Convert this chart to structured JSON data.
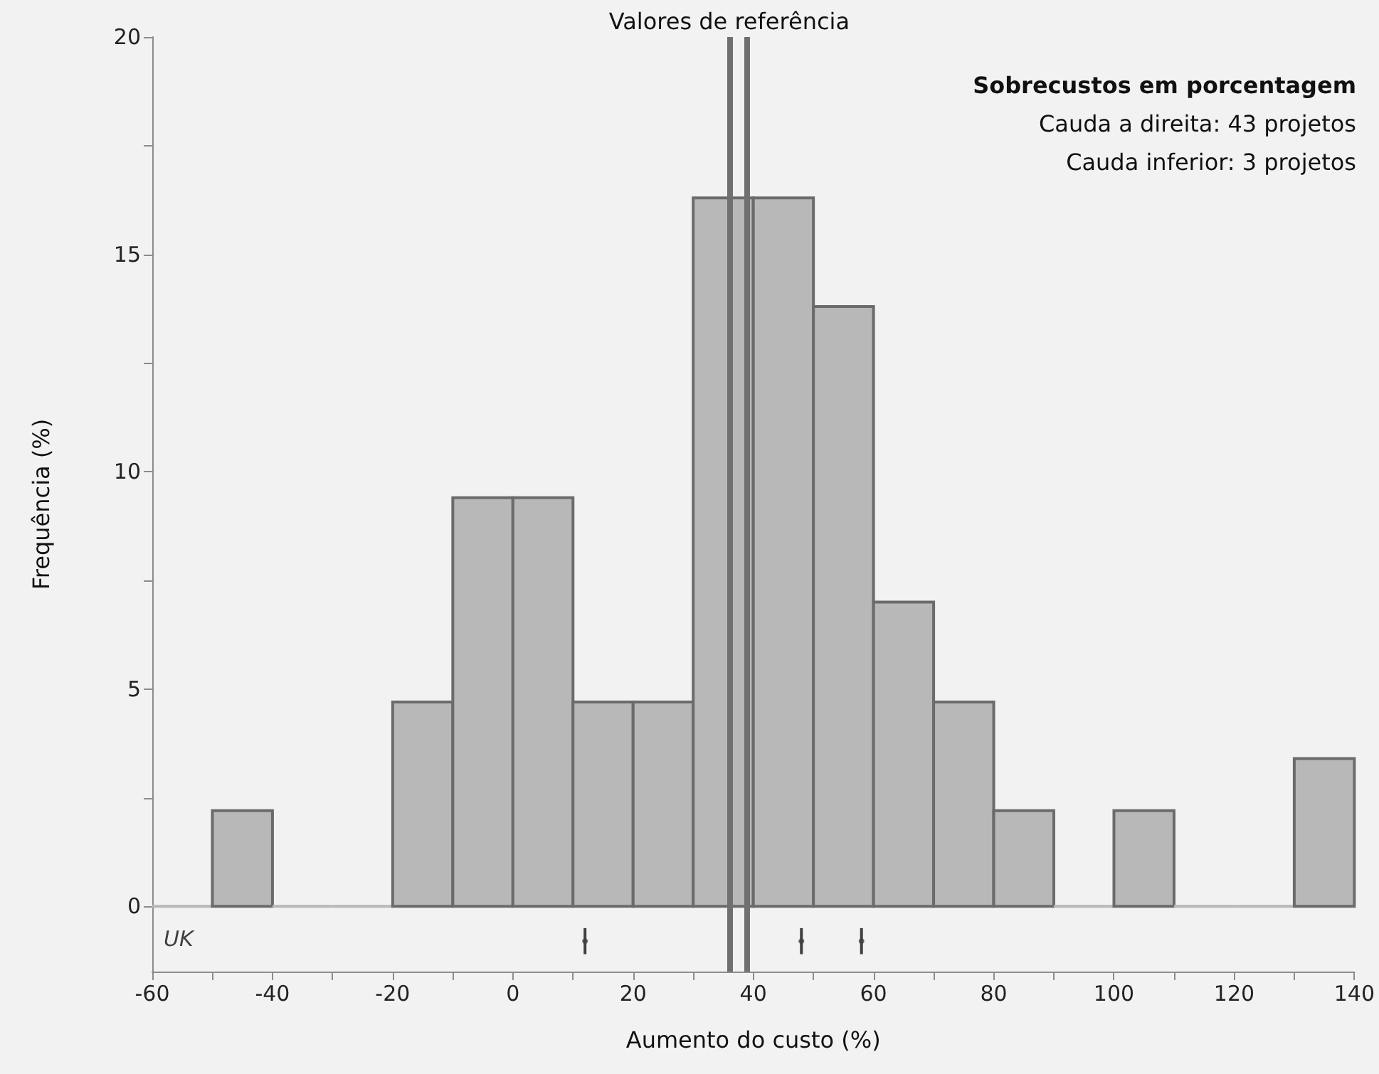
{
  "chart_data": {
    "type": "histogram",
    "ylabel": "Frequência (%)",
    "xlabel": "Aumento do custo (%)",
    "bins": [
      -60,
      -50,
      -40,
      -30,
      -20,
      -10,
      0,
      10,
      20,
      30,
      40,
      50,
      60,
      70,
      80,
      90,
      100,
      110,
      120,
      130,
      140
    ],
    "values": [
      0,
      2.2,
      0,
      0,
      4.7,
      9.4,
      9.4,
      4.7,
      4.7,
      16.3,
      16.3,
      13.8,
      7.0,
      4.7,
      2.2,
      0,
      2.2,
      0,
      0,
      3.4
    ],
    "color": "#b8b8b8",
    "series": [
      {
        "type": "scatter",
        "name": "UK",
        "color": "#404040",
        "x": [
          12,
          48,
          58
        ],
        "values": [
          -0.8,
          -0.8,
          -0.8
        ],
        "errors": [
          0.3,
          0.3,
          0.3
        ],
        "marker": "circle"
      }
    ],
    "xlim": [
      -60,
      140
    ],
    "xticks": [
      -60,
      {
        "value": -50,
        "label": null
      },
      -40,
      {
        "value": -30,
        "label": null
      },
      -20,
      {
        "value": -10,
        "label": null
      },
      0,
      {
        "value": 10,
        "label": null
      },
      20,
      {
        "value": 30,
        "label": null
      },
      40,
      {
        "value": 50,
        "label": null
      },
      60,
      {
        "value": 70,
        "label": null
      },
      80,
      {
        "value": 90,
        "label": null
      },
      100,
      {
        "value": 110,
        "label": null
      },
      120,
      {
        "value": 130,
        "label": null
      },
      140
    ],
    "ylim": [
      -1.5,
      20
    ],
    "yticks": [
      0,
      {
        "value": 2.5,
        "label": null
      },
      5,
      {
        "value": 7.5,
        "label": null
      },
      10,
      {
        "value": 12.5,
        "label": null
      },
      15,
      {
        "value": 17.5,
        "label": null
      },
      20
    ],
    "grid": false,
    "ref_lines": [
      {
        "axis": "x",
        "value": 36,
        "label": "Valores de referência",
        "color": "#707070"
      },
      {
        "axis": "x",
        "value": 39,
        "label": null,
        "color": "#707070"
      }
    ],
    "annotations": [
      "Sobrecustos em porcentagem",
      "Cauda a direita: 43 projetos",
      "Cauda inferior: 3 projetos"
    ]
  }
}
